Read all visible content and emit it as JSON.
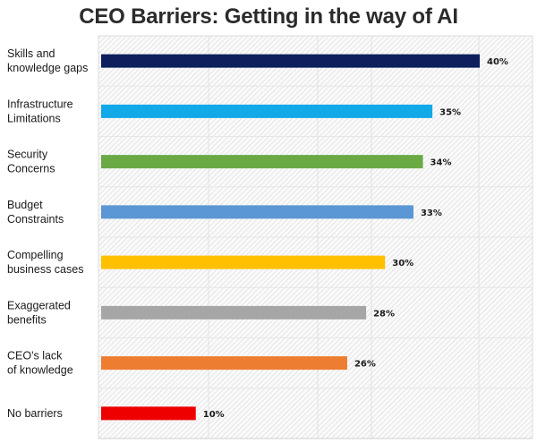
{
  "chart_data": {
    "type": "bar",
    "orientation": "horizontal",
    "title": "CEO Barriers: Getting in the way of AI",
    "xlabel": "",
    "ylabel": "",
    "xlim": [
      0,
      45
    ],
    "grid": true,
    "legend": "none",
    "value_suffix": "%",
    "categories": [
      [
        "Skills and",
        "knowledge gaps"
      ],
      [
        "Infrastructure",
        "Limitations"
      ],
      [
        "Security",
        "Concerns"
      ],
      [
        "Budget",
        "Constraints"
      ],
      [
        "Compelling",
        "business cases"
      ],
      [
        "Exaggerated",
        "benefits"
      ],
      [
        "CEO's lack",
        "of knowledge"
      ],
      [
        "No barriers"
      ]
    ],
    "values": [
      40,
      35,
      34,
      33,
      30,
      28,
      26,
      10
    ],
    "value_labels": [
      "40%",
      "35%",
      "34%",
      "33%",
      "30%",
      "28%",
      "26%",
      "10%"
    ],
    "colors": [
      "#0d1f5c",
      "#12a9e8",
      "#6aa944",
      "#5b97d4",
      "#ffc000",
      "#a6a6a6",
      "#ed7d31",
      "#ee0000"
    ]
  }
}
